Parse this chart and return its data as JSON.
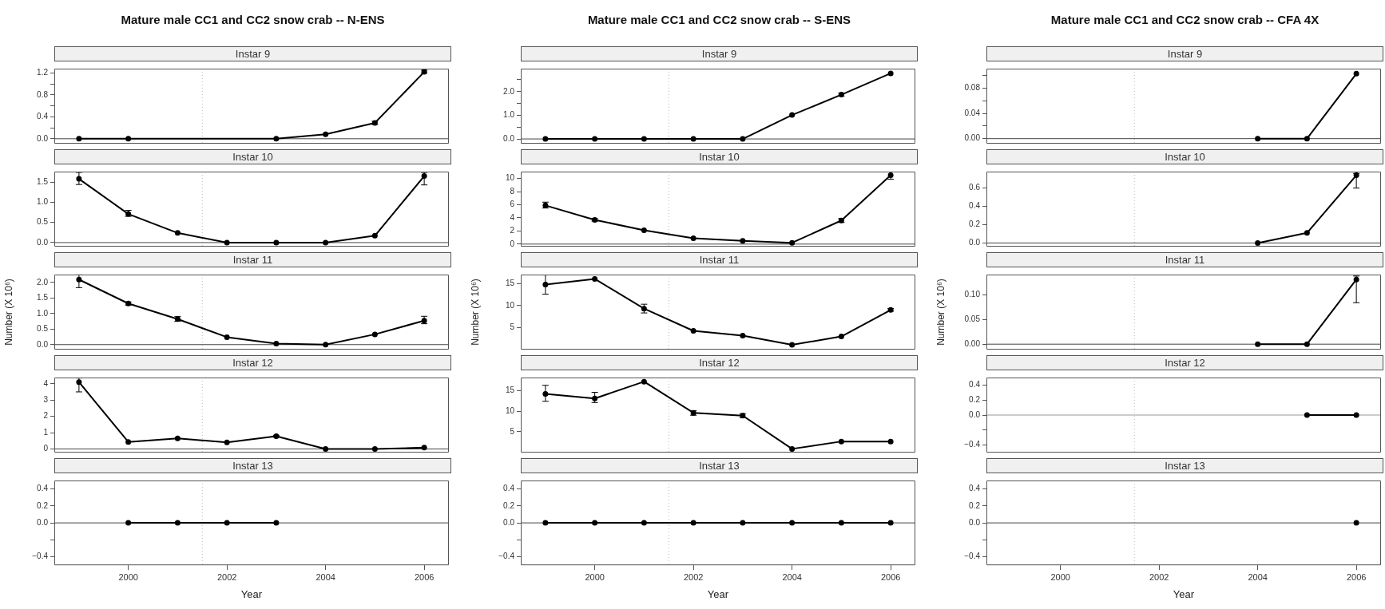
{
  "chart_data": [
    {
      "type": "line",
      "title": "Mature male CC1 and CC2 snow crab -- N-ENS",
      "subtitle": "Instar 9",
      "color": "#000000",
      "marker": "circle",
      "tick_labels": "y",
      "x": [
        1999,
        2000,
        2003,
        2004,
        2005,
        2006
      ],
      "values": [
        0,
        0,
        0,
        0.08,
        0.29,
        1.22
      ],
      "errors": [
        null,
        null,
        null,
        null,
        [
          0.26,
          0.32
        ],
        [
          1.2,
          1.25
        ]
      ],
      "xlim": [
        1998.5,
        2006.5
      ],
      "ylim": [
        -0.09,
        1.28
      ],
      "yticks": [
        {
          "value": 0,
          "label": "0.0"
        },
        {
          "value": 0.2,
          "label": null
        },
        {
          "value": 0.4,
          "label": "0.4"
        },
        {
          "value": 0.6,
          "label": null
        },
        {
          "value": 0.8,
          "label": "0.8"
        },
        {
          "value": 1,
          "label": null
        },
        {
          "value": 1.2,
          "label": "1.2"
        }
      ],
      "ref_lines": [
        {
          "axis": "x",
          "value": 2001.5,
          "line_style": "dotted",
          "color": "#bbbbbb"
        },
        {
          "axis": "y",
          "value": 0,
          "color": "#444444"
        }
      ]
    },
    {
      "type": "line",
      "subtitle": "Instar 10",
      "color": "#000000",
      "marker": "circle",
      "tick_labels": "y",
      "x": [
        1999,
        2000,
        2001,
        2002,
        2003,
        2004,
        2005,
        2006
      ],
      "values": [
        1.58,
        0.71,
        0.24,
        0,
        0,
        0,
        0.17,
        1.65
      ],
      "errors": [
        [
          1.44,
          1.74
        ],
        [
          0.65,
          0.8
        ],
        null,
        null,
        null,
        null,
        null,
        [
          1.43,
          1.74
        ]
      ],
      "xlim": [
        1998.5,
        2006.5
      ],
      "ylim": [
        -0.1,
        1.76
      ],
      "yticks": [
        {
          "value": 0,
          "label": "0.0"
        },
        0.5,
        {
          "value": 1,
          "label": "1.0"
        },
        1.5
      ],
      "ref_lines": [
        {
          "axis": "x",
          "value": 2001.5,
          "line_style": "dotted",
          "color": "#bbbbbb"
        },
        {
          "axis": "y",
          "value": 0,
          "color": "#444444"
        }
      ]
    },
    {
      "type": "line",
      "subtitle": "Instar 11",
      "ylabel": "Number (X 10⁶)",
      "color": "#000000",
      "marker": "circle",
      "tick_labels": "y",
      "x": [
        1999,
        2000,
        2001,
        2002,
        2003,
        2004,
        2005,
        2006
      ],
      "values": [
        2.09,
        1.32,
        0.82,
        0.24,
        0.03,
        0,
        0.33,
        0.77
      ],
      "errors": [
        [
          1.83,
          2.24
        ],
        [
          1.27,
          1.37
        ],
        [
          0.75,
          0.9
        ],
        null,
        null,
        null,
        null,
        [
          0.67,
          0.91
        ]
      ],
      "xlim": [
        1998.5,
        2006.5
      ],
      "ylim": [
        -0.16,
        2.25
      ],
      "yticks": [
        {
          "value": 0,
          "label": "0.0"
        },
        0.5,
        {
          "value": 1,
          "label": "1.0"
        },
        1.5,
        {
          "value": 2,
          "label": "2.0"
        }
      ],
      "ref_lines": [
        {
          "axis": "x",
          "value": 2001.5,
          "line_style": "dotted",
          "color": "#bbbbbb"
        },
        {
          "axis": "y",
          "value": 0,
          "color": "#444444"
        }
      ]
    },
    {
      "type": "line",
      "subtitle": "Instar 12",
      "color": "#000000",
      "marker": "circle",
      "tick_labels": "y",
      "x": [
        1999,
        2000,
        2001,
        2002,
        2003,
        2004,
        2005,
        2006
      ],
      "values": [
        4.1,
        0.43,
        0.65,
        0.4,
        0.78,
        0,
        0,
        0.08
      ],
      "errors": [
        [
          3.5,
          4.35
        ],
        null,
        null,
        null,
        [
          0.72,
          0.84
        ],
        null,
        null,
        null
      ],
      "xlim": [
        1998.5,
        2006.5
      ],
      "ylim": [
        -0.22,
        4.38
      ],
      "yticks": [
        0,
        1,
        2,
        3,
        4
      ],
      "ref_lines": [
        {
          "axis": "x",
          "value": 2001.5,
          "line_style": "dotted",
          "color": "#bbbbbb"
        },
        {
          "axis": "y",
          "value": 0,
          "color": "#444444"
        }
      ]
    },
    {
      "type": "line",
      "subtitle": "Instar 13",
      "xlabel": "Year",
      "color": "#000000",
      "marker": "circle",
      "x": [
        2000,
        2001,
        2002,
        2003
      ],
      "values": [
        0,
        0,
        0,
        0
      ],
      "xlim": [
        1998.5,
        2006.5
      ],
      "xticks": [
        2000,
        2002,
        2004,
        2006
      ],
      "ylim": [
        -0.5,
        0.5
      ],
      "yticks": [
        {
          "value": -0.4,
          "label": "−0.4"
        },
        {
          "value": -0.2,
          "label": null
        },
        {
          "value": 0,
          "label": "0.0"
        },
        {
          "value": 0.2,
          "label": "0.2"
        },
        {
          "value": 0.4,
          "label": "0.4"
        }
      ],
      "ref_lines": [
        {
          "axis": "x",
          "value": 2001.5,
          "line_style": "dotted",
          "color": "#bbbbbb"
        },
        {
          "axis": "y",
          "value": 0,
          "color": "#444444"
        }
      ]
    },
    {
      "type": "line",
      "title": "Mature male CC1 and CC2 snow crab -- S-ENS",
      "subtitle": "Instar 9",
      "color": "#000000",
      "marker": "circle",
      "tick_labels": "y",
      "x": [
        1999,
        2000,
        2001,
        2002,
        2003,
        2004,
        2005,
        2006
      ],
      "values": [
        0,
        0,
        0,
        0,
        0,
        1.01,
        1.87,
        2.77
      ],
      "errors": [
        null,
        null,
        null,
        null,
        null,
        null,
        [
          1.81,
          1.93
        ],
        null
      ],
      "xlim": [
        1998.5,
        2006.5
      ],
      "ylim": [
        -0.2,
        2.97
      ],
      "yticks": [
        {
          "value": 0,
          "label": "0.0"
        },
        {
          "value": 0.5,
          "label": null
        },
        {
          "value": 1,
          "label": "1.0"
        },
        {
          "value": 1.5,
          "label": null
        },
        {
          "value": 2,
          "label": "2.0"
        },
        {
          "value": 2.5,
          "label": null
        }
      ],
      "ref_lines": [
        {
          "axis": "x",
          "value": 2001.5,
          "line_style": "dotted",
          "color": "#bbbbbb"
        },
        {
          "axis": "y",
          "value": 0,
          "color": "#444444"
        }
      ]
    },
    {
      "type": "line",
      "subtitle": "Instar 10",
      "color": "#000000",
      "marker": "circle",
      "tick_labels": "y",
      "x": [
        1999,
        2000,
        2001,
        2002,
        2003,
        2004,
        2005,
        2006
      ],
      "values": [
        5.9,
        3.7,
        2.1,
        0.9,
        0.5,
        0.2,
        3.6,
        10.5
      ],
      "errors": [
        [
          5.5,
          6.4
        ],
        [
          3.5,
          3.9
        ],
        null,
        null,
        null,
        null,
        [
          3.3,
          3.9
        ],
        [
          9.9,
          11
        ]
      ],
      "xlim": [
        1998.5,
        2006.5
      ],
      "ylim": [
        -0.39,
        11.06
      ],
      "yticks": [
        0,
        2,
        4,
        6,
        8,
        10
      ],
      "ref_lines": [
        {
          "axis": "x",
          "value": 2001.5,
          "line_style": "dotted",
          "color": "#bbbbbb"
        },
        {
          "axis": "y",
          "value": 0,
          "color": "#444444"
        }
      ]
    },
    {
      "type": "line",
      "subtitle": "Instar 11",
      "ylabel": "Number (X 10⁶)",
      "color": "#000000",
      "marker": "circle",
      "tick_labels": "y",
      "x": [
        1999,
        2000,
        2001,
        2002,
        2003,
        2004,
        2005,
        2006
      ],
      "values": [
        14.8,
        16.1,
        9.3,
        4.2,
        3.1,
        1,
        2.9,
        9
      ],
      "errors": [
        [
          12.6,
          17
        ],
        null,
        [
          8.3,
          10.3
        ],
        null,
        null,
        null,
        null,
        [
          8.7,
          9.3
        ]
      ],
      "xlim": [
        1998.5,
        2006.5
      ],
      "ylim": [
        -0.1,
        17.1
      ],
      "yticks": [
        5,
        10,
        15
      ],
      "ref_lines": [
        {
          "axis": "x",
          "value": 2001.5,
          "line_style": "dotted",
          "color": "#bbbbbb"
        }
      ]
    },
    {
      "type": "line",
      "subtitle": "Instar 12",
      "color": "#000000",
      "marker": "circle",
      "tick_labels": "y",
      "x": [
        1999,
        2000,
        2001,
        2002,
        2003,
        2004,
        2005,
        2006
      ],
      "values": [
        14.2,
        13.1,
        17.2,
        9.6,
        8.9,
        0.8,
        2.6,
        2.6
      ],
      "errors": [
        [
          12.4,
          16.3
        ],
        [
          12.1,
          14.6
        ],
        null,
        [
          9,
          10.1
        ],
        [
          8.4,
          9.4
        ],
        null,
        null,
        null
      ],
      "xlim": [
        1998.5,
        2006.5
      ],
      "ylim": [
        -0.1,
        18.2
      ],
      "yticks": [
        5,
        10,
        15
      ],
      "ref_lines": [
        {
          "axis": "x",
          "value": 2001.5,
          "line_style": "dotted",
          "color": "#bbbbbb"
        }
      ]
    },
    {
      "type": "line",
      "subtitle": "Instar 13",
      "xlabel": "Year",
      "color": "#000000",
      "marker": "circle",
      "x": [
        1999,
        2000,
        2001,
        2002,
        2003,
        2004,
        2005,
        2006
      ],
      "values": [
        0,
        0,
        0,
        0,
        0,
        0,
        0,
        0
      ],
      "xlim": [
        1998.5,
        2006.5
      ],
      "xticks": [
        2000,
        2002,
        2004,
        2006
      ],
      "ylim": [
        -0.5,
        0.5
      ],
      "yticks": [
        {
          "value": -0.4,
          "label": "−0.4"
        },
        {
          "value": -0.2,
          "label": null
        },
        {
          "value": 0,
          "label": "0.0"
        },
        {
          "value": 0.2,
          "label": "0.2"
        },
        {
          "value": 0.4,
          "label": "0.4"
        }
      ],
      "ref_lines": [
        {
          "axis": "x",
          "value": 2001.5,
          "line_style": "dotted",
          "color": "#bbbbbb"
        },
        {
          "axis": "y",
          "value": 0,
          "color": "#444444"
        }
      ]
    },
    {
      "type": "line",
      "title": "Mature male CC1 and CC2 snow crab -- CFA 4X",
      "subtitle": "Instar 9",
      "color": "#000000",
      "marker": "circle",
      "tick_labels": "y",
      "x": [
        2004,
        2005,
        2006
      ],
      "values": [
        0,
        0,
        0.103
      ],
      "xlim": [
        1998.5,
        2006.5
      ],
      "ylim": [
        -0.008,
        0.111
      ],
      "yticks": [
        {
          "value": 0,
          "label": "0.00"
        },
        {
          "value": 0.02,
          "label": null
        },
        {
          "value": 0.04,
          "label": "0.04"
        },
        {
          "value": 0.06,
          "label": null
        },
        {
          "value": 0.08,
          "label": "0.08"
        },
        {
          "value": 0.1,
          "label": null
        }
      ],
      "ref_lines": [
        {
          "axis": "x",
          "value": 2001.5,
          "line_style": "dotted",
          "color": "#bbbbbb"
        },
        {
          "axis": "y",
          "value": 0,
          "color": "#444444"
        }
      ]
    },
    {
      "type": "line",
      "subtitle": "Instar 10",
      "color": "#000000",
      "marker": "circle",
      "tick_labels": "y",
      "x": [
        2004,
        2005,
        2006
      ],
      "values": [
        0,
        0.11,
        0.74
      ],
      "errors": [
        null,
        null,
        [
          0.6,
          0.76
        ]
      ],
      "xlim": [
        1998.5,
        2006.5
      ],
      "ylim": [
        -0.04,
        0.78
      ],
      "yticks": [
        {
          "value": 0,
          "label": "0.0"
        },
        {
          "value": 0.2,
          "label": "0.2"
        },
        {
          "value": 0.4,
          "label": "0.4"
        },
        {
          "value": 0.6,
          "label": "0.6"
        }
      ],
      "ref_lines": [
        {
          "axis": "x",
          "value": 2001.5,
          "line_style": "dotted",
          "color": "#bbbbbb"
        },
        {
          "axis": "y",
          "value": 0,
          "color": "#444444"
        }
      ]
    },
    {
      "type": "line",
      "subtitle": "Instar 11",
      "ylabel": "Number (X 10⁶)",
      "color": "#000000",
      "marker": "circle",
      "tick_labels": "y",
      "x": [
        2004,
        2005,
        2006
      ],
      "values": [
        0,
        0,
        0.131
      ],
      "errors": [
        null,
        null,
        [
          0.084,
          0.138
        ]
      ],
      "xlim": [
        1998.5,
        2006.5
      ],
      "ylim": [
        -0.011,
        0.141
      ],
      "yticks": [
        {
          "value": 0,
          "label": "0.00"
        },
        {
          "value": 0.05,
          "label": "0.05"
        },
        {
          "value": 0.1,
          "label": "0.10"
        }
      ],
      "ref_lines": [
        {
          "axis": "x",
          "value": 2001.5,
          "line_style": "dotted",
          "color": "#bbbbbb"
        },
        {
          "axis": "y",
          "value": 0,
          "color": "#444444"
        }
      ]
    },
    {
      "type": "line",
      "subtitle": "Instar 12",
      "color": "#000000",
      "marker": "circle",
      "tick_labels": "y",
      "x": [
        2005,
        2006
      ],
      "values": [
        0,
        0
      ],
      "xlim": [
        1998.5,
        2006.5
      ],
      "ylim": [
        -0.5,
        0.5
      ],
      "yticks": [
        {
          "value": -0.4,
          "label": "−0.4"
        },
        {
          "value": -0.2,
          "label": null
        },
        {
          "value": 0,
          "label": "0.0"
        },
        {
          "value": 0.2,
          "label": "0.2"
        },
        {
          "value": 0.4,
          "label": "0.4"
        }
      ],
      "ref_lines": [
        {
          "axis": "x",
          "value": 2001.5,
          "line_style": "dotted",
          "color": "#bbbbbb"
        },
        {
          "axis": "y",
          "value": 0,
          "color": "#999999"
        }
      ]
    },
    {
      "type": "line",
      "subtitle": "Instar 13",
      "xlabel": "Year",
      "color": "#000000",
      "marker": "circle",
      "x": [
        2006
      ],
      "values": [
        0
      ],
      "xlim": [
        1998.5,
        2006.5
      ],
      "xticks": [
        2000,
        2002,
        2004,
        2006
      ],
      "ylim": [
        -0.5,
        0.5
      ],
      "yticks": [
        {
          "value": -0.4,
          "label": "−0.4"
        },
        {
          "value": -0.2,
          "label": null
        },
        {
          "value": 0,
          "label": "0.0"
        },
        {
          "value": 0.2,
          "label": "0.2"
        },
        {
          "value": 0.4,
          "label": "0.4"
        }
      ],
      "ref_lines": [
        {
          "axis": "x",
          "value": 2001.5,
          "line_style": "dotted",
          "color": "#bbbbbb"
        },
        {
          "axis": "y",
          "value": 0,
          "color": "#444444"
        }
      ]
    }
  ]
}
